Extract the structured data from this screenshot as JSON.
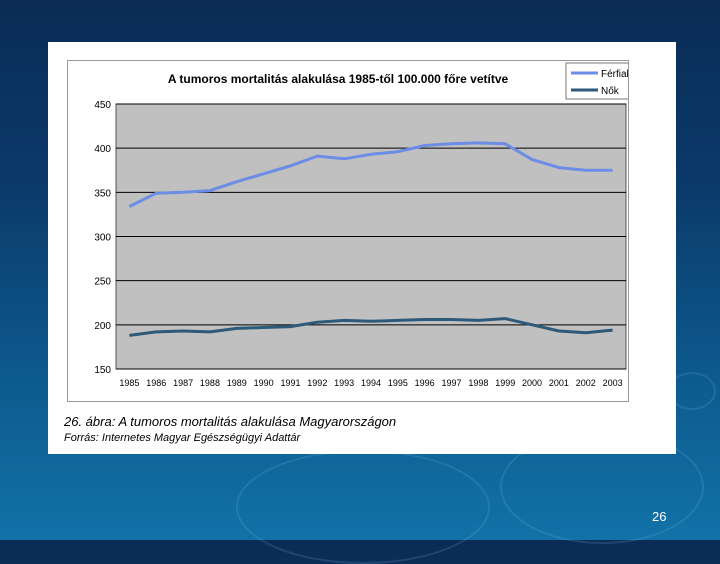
{
  "slide": {
    "caption": "26. ábra: A tumoros mortalitás alakulása Magyarországon",
    "source": "Forrás: Internetes Magyar Egészségügyi Adattár",
    "page_number": "26"
  },
  "colors": {
    "plot_background": "#c0c0c0",
    "ferfiak_line": "#6c8de6",
    "nok_line": "#2d5a7b",
    "grid": "#000000"
  },
  "chart_data": {
    "type": "line",
    "title": "A tumoros mortalitás alakulása 1985-től 100.000 főre vetítve",
    "xlabel": "",
    "ylabel": "",
    "ylim": [
      150,
      450
    ],
    "yticks": [
      150,
      200,
      250,
      300,
      350,
      400,
      450
    ],
    "grid": true,
    "legend_position": "top-right",
    "categories": [
      "1985",
      "1986",
      "1987",
      "1988",
      "1989",
      "1990",
      "1991",
      "1992",
      "1993",
      "1994",
      "1995",
      "1996",
      "1997",
      "1998",
      "1999",
      "2000",
      "2001",
      "2002",
      "2003"
    ],
    "series": [
      {
        "name": "Férfiak",
        "color": "#6c8de6",
        "values": [
          334,
          349,
          350,
          352,
          362,
          371,
          380,
          391,
          388,
          393,
          396,
          403,
          405,
          406,
          405,
          387,
          378,
          375,
          375
        ]
      },
      {
        "name": "Nők",
        "color": "#2d5a7b",
        "values": [
          188,
          192,
          193,
          192,
          196,
          197,
          198,
          203,
          205,
          204,
          205,
          206,
          206,
          205,
          207,
          200,
          193,
          191,
          194
        ]
      }
    ]
  }
}
